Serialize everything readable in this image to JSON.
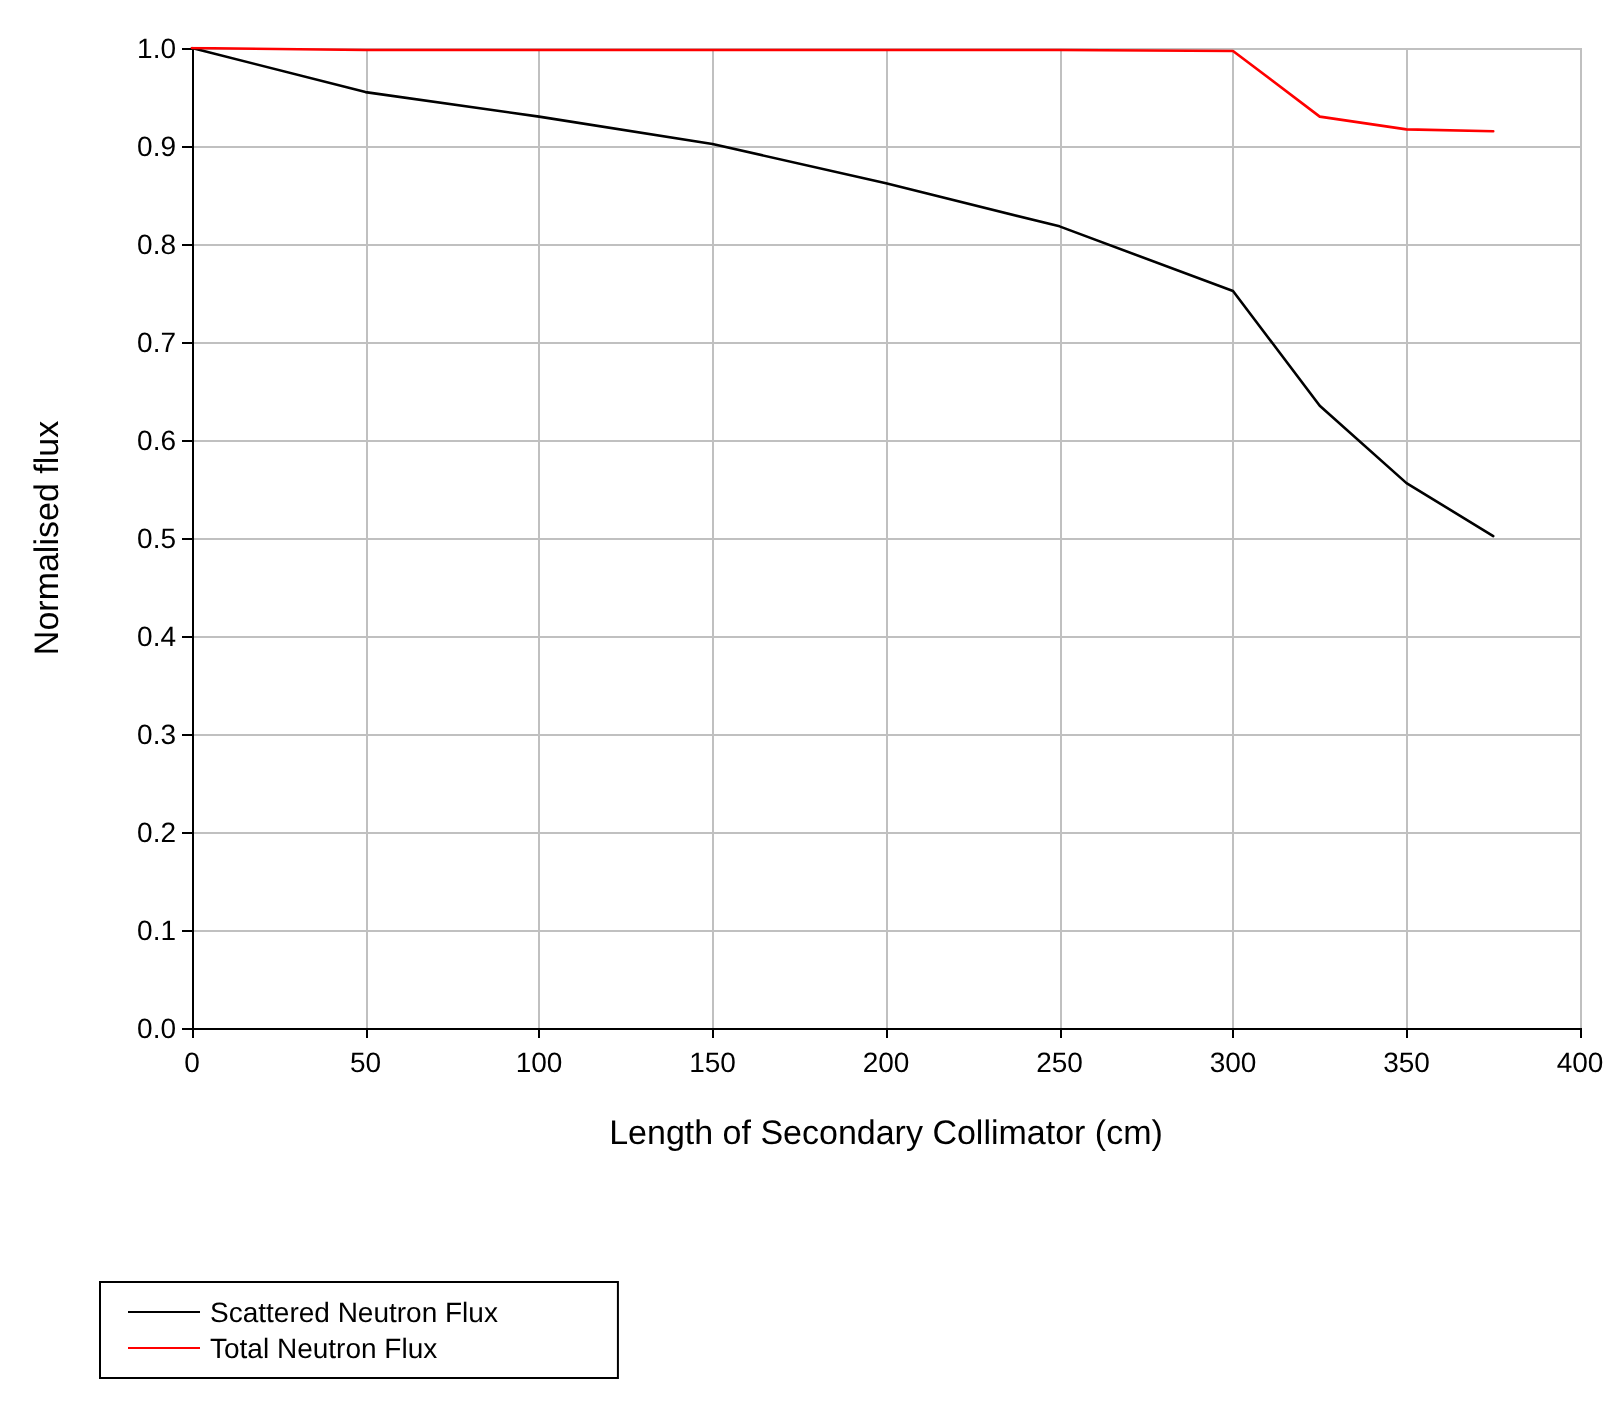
{
  "chart_data": {
    "type": "line",
    "xlabel": "Length of Secondary Collimator (cm)",
    "ylabel": "Normalised flux",
    "x": [
      0,
      50,
      100,
      150,
      200,
      250,
      300,
      325,
      350,
      375
    ],
    "series": [
      {
        "name": "Scattered Neutron Flux",
        "color": "#000000",
        "values": [
          1.0,
          0.955,
          0.93,
          0.902,
          0.862,
          0.818,
          0.752,
          0.635,
          0.556,
          0.502
        ]
      },
      {
        "name": "Total Neutron Flux",
        "color": "#ff0000",
        "values": [
          1.0,
          0.998,
          0.998,
          0.998,
          0.998,
          0.998,
          0.997,
          0.93,
          0.917,
          0.915
        ]
      }
    ],
    "xlim": [
      0,
      400
    ],
    "xticks": [
      0,
      50,
      100,
      150,
      200,
      250,
      300,
      350,
      400
    ],
    "ylim": [
      0,
      1
    ],
    "yticks": [
      {
        "value": 0,
        "label": "0.0"
      },
      {
        "value": 0.1,
        "label": "0.1"
      },
      {
        "value": 0.2,
        "label": "0.2"
      },
      {
        "value": 0.3,
        "label": "0.3"
      },
      {
        "value": 0.4,
        "label": "0.4"
      },
      {
        "value": 0.5,
        "label": "0.5"
      },
      {
        "value": 0.6,
        "label": "0.6"
      },
      {
        "value": 0.7,
        "label": "0.7"
      },
      {
        "value": 0.8,
        "label": "0.8"
      },
      {
        "value": 0.9,
        "label": "0.9"
      },
      {
        "value": 1,
        "label": "1.0"
      }
    ],
    "grid": true,
    "legend": "bottom left",
    "marker": "none",
    "line_style": "solid"
  }
}
